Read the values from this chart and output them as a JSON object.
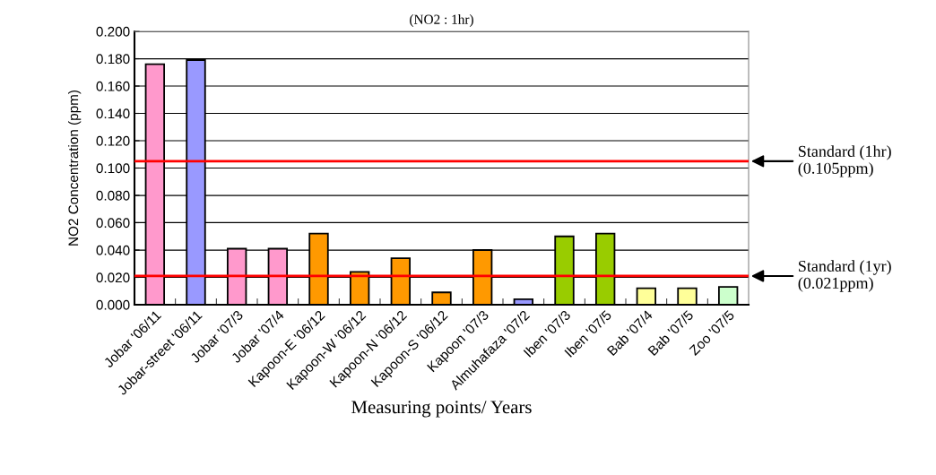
{
  "chart_data": {
    "type": "bar",
    "title": "(NO2 : 1hr)",
    "xlabel": "Measuring points/ Years",
    "ylabel": "NO2 Concentration (ppm)",
    "categories": [
      "Jobar '06/11",
      "Jobar-street '06/11",
      "Jobar '07/3",
      "Jobar '07/4",
      "Kapoon-E '06/12",
      "Kapoon-W '06/12",
      "Kapoon-N '06/12",
      "Kapoon-S '06/12",
      "Kapoon '07/3",
      "Almuhafaza '07/2",
      "Iben '07/3",
      "Iben '07/5",
      "Bab '07/4",
      "Bab '07/5",
      "Zoo '07/5"
    ],
    "values": [
      0.176,
      0.179,
      0.041,
      0.041,
      0.052,
      0.024,
      0.034,
      0.009,
      0.04,
      0.004,
      0.05,
      0.052,
      0.012,
      0.012,
      0.013
    ],
    "colors": [
      "#ff99cc",
      "#9999ff",
      "#ff99cc",
      "#ff99cc",
      "#ff9900",
      "#ff9900",
      "#ff9900",
      "#ff9900",
      "#ff9900",
      "#9999ff",
      "#99cc00",
      "#99cc00",
      "#ffff99",
      "#ffff99",
      "#ccffcc"
    ],
    "ylim": [
      0,
      0.2
    ],
    "yticks": [
      {
        "value": 0,
        "label": "0.000"
      },
      {
        "value": 0.02,
        "label": "0.020"
      },
      {
        "value": 0.04,
        "label": "0.040"
      },
      {
        "value": 0.06,
        "label": "0.060"
      },
      {
        "value": 0.08,
        "label": "0.080"
      },
      {
        "value": 0.1,
        "label": "0.100"
      },
      {
        "value": 0.12,
        "label": "0.120"
      },
      {
        "value": 0.14,
        "label": "0.140"
      },
      {
        "value": 0.16,
        "label": "0.160"
      },
      {
        "value": 0.18,
        "label": "0.180"
      },
      {
        "value": 0.2,
        "label": "0.200"
      }
    ],
    "grid": "y",
    "ref_lines": [
      {
        "axis": "y",
        "value": 0.105,
        "label": "Standard (1hr)\n(0.105ppm)",
        "color": "#ff0000"
      },
      {
        "axis": "y",
        "value": 0.021,
        "label": "Standard (1yr)\n(0.021ppm)",
        "color": "#ff0000"
      }
    ]
  }
}
